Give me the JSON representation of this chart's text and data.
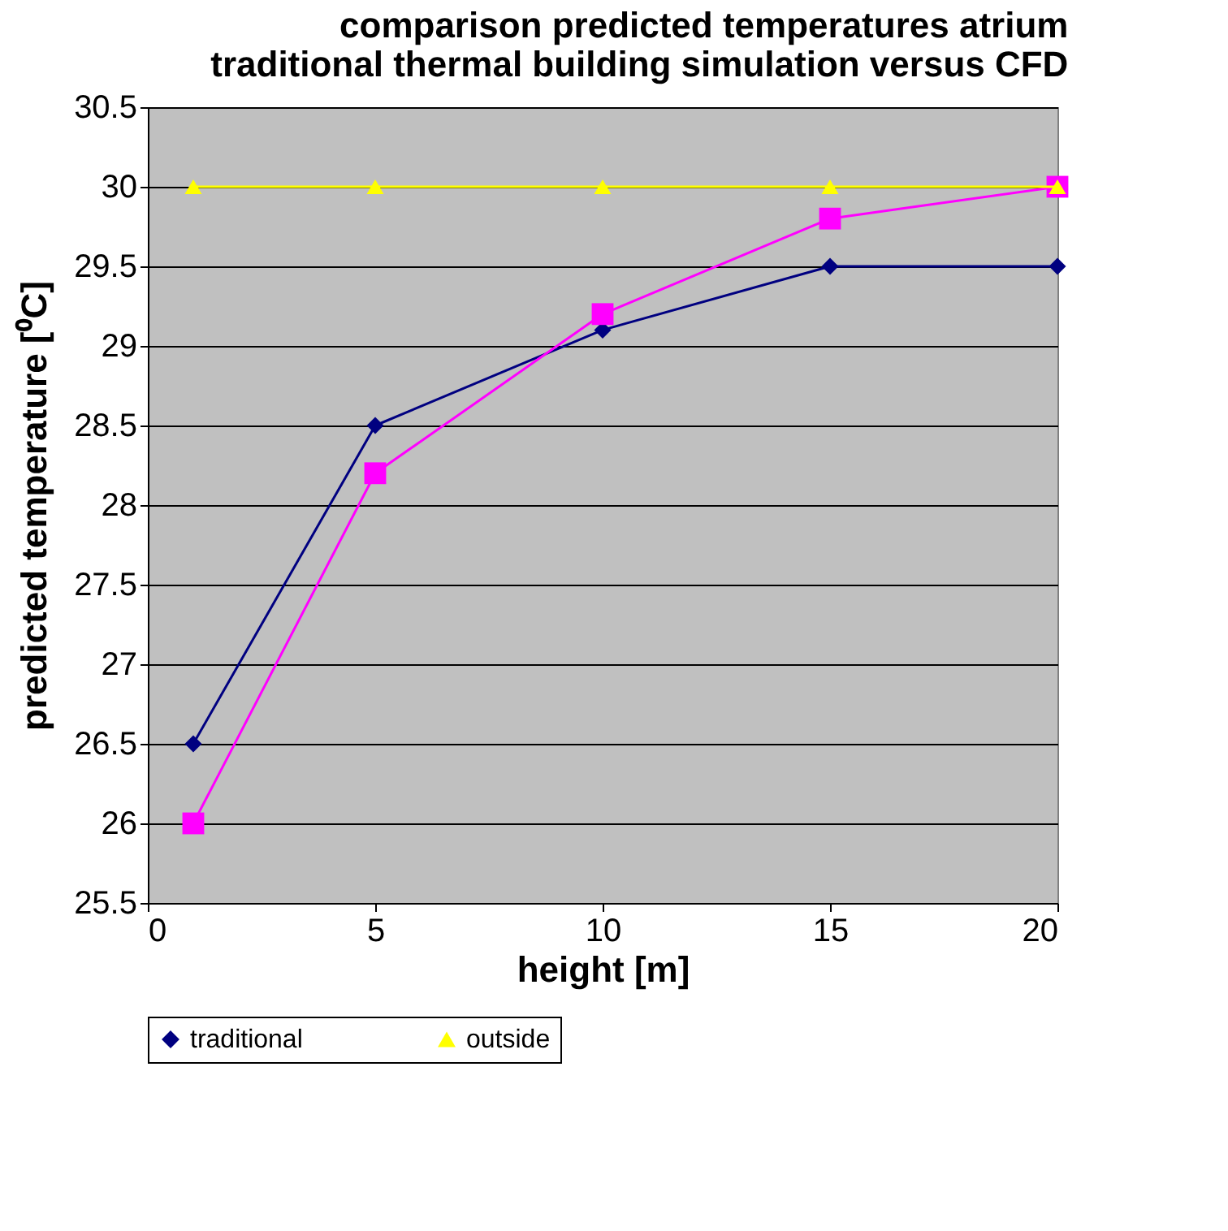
{
  "chart_data": {
    "type": "line",
    "title": [
      "comparison predicted temperatures atrium",
      "traditional thermal building simulation versus CFD"
    ],
    "xlabel": "height [m]",
    "ylabel": "predicted temperature [⁰C]",
    "x": [
      1,
      5,
      10,
      15,
      20
    ],
    "series": [
      {
        "name": "traditional",
        "color": "#000080",
        "marker": "diamond",
        "values": [
          26.5,
          28.5,
          29.1,
          29.5,
          29.5
        ]
      },
      {
        "color": "#ff00ff",
        "marker": "square",
        "values": [
          26.0,
          28.2,
          29.2,
          29.8,
          30.0
        ]
      },
      {
        "name": "outside",
        "color": "#ffff00",
        "marker": "triangle",
        "values": [
          30,
          30,
          30,
          30,
          30
        ]
      }
    ],
    "xlim": [
      0,
      20
    ],
    "xticks": [
      0,
      5,
      10,
      15,
      20
    ],
    "ylim": [
      25.5,
      30.5
    ],
    "yticks": [
      25.5,
      26,
      26.5,
      27,
      27.5,
      28,
      28.5,
      29,
      29.5,
      30,
      30.5
    ],
    "grid": "y",
    "legend": "bottom",
    "line_style": "solid"
  }
}
